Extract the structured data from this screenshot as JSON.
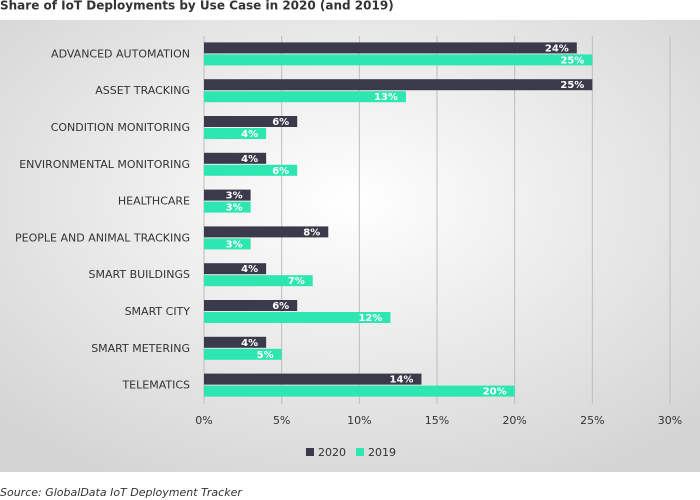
{
  "chart_data": {
    "type": "hbar",
    "title": "Share of IoT Deployments by Use Case in 2020 (and 2019)",
    "source": "Source: GlobalData IoT Deployment Tracker",
    "categories": [
      "ADVANCED AUTOMATION",
      "ASSET TRACKING",
      "CONDITION MONITORING",
      "ENVIRONMENTAL MONITORING",
      "HEALTHCARE",
      "PEOPLE AND ANIMAL TRACKING",
      "SMART BUILDINGS",
      "SMART CITY",
      "SMART METERING",
      "TELEMATICS"
    ],
    "series": [
      {
        "name": "2020",
        "color": "#3b3a4a",
        "values": [
          24,
          25,
          6,
          4,
          3,
          8,
          4,
          6,
          4,
          14
        ],
        "value_labels": [
          "24%",
          "25%",
          "6%",
          "4%",
          "3%",
          "8%",
          "4%",
          "6%",
          "4%",
          "14%"
        ]
      },
      {
        "name": "2019",
        "color": "#2ee6b0",
        "values": [
          25,
          13,
          4,
          6,
          3,
          3,
          7,
          12,
          5,
          20
        ],
        "value_labels": [
          "25%",
          "13%",
          "4%",
          "6%",
          "3%",
          "3%",
          "7%",
          "12%",
          "5%",
          "20%"
        ]
      }
    ],
    "xlim": [
      0,
      30
    ],
    "xticks": [
      {
        "value": 0,
        "label": "0%"
      },
      {
        "value": 5,
        "label": "5%"
      },
      {
        "value": 10,
        "label": "10%"
      },
      {
        "value": 15,
        "label": "15%"
      },
      {
        "value": 20,
        "label": "20%"
      },
      {
        "value": 25,
        "label": "25%"
      },
      {
        "value": 30,
        "label": "30%"
      }
    ],
    "grid": true,
    "legend": "bottom"
  }
}
